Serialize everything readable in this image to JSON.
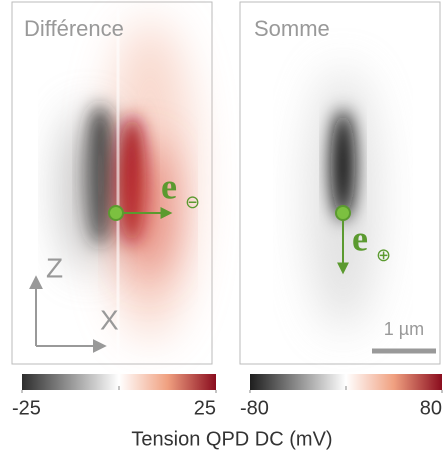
{
  "chart_data": [
    {
      "type": "heatmap",
      "title": "Différence",
      "clim": [
        -25,
        25
      ],
      "cticks": [
        -25,
        25
      ],
      "vector_label": "e",
      "vector_symbol": "⊖"
    },
    {
      "type": "heatmap",
      "title": "Somme",
      "clim": [
        -80,
        80
      ],
      "cticks": [
        -80,
        80
      ],
      "vector_label": "e",
      "vector_symbol": "⊕",
      "scale_bar": "1 µm"
    }
  ],
  "colorbar_label": "Tension QPD DC (mV)",
  "axes": {
    "z": "Z",
    "x": "X"
  }
}
